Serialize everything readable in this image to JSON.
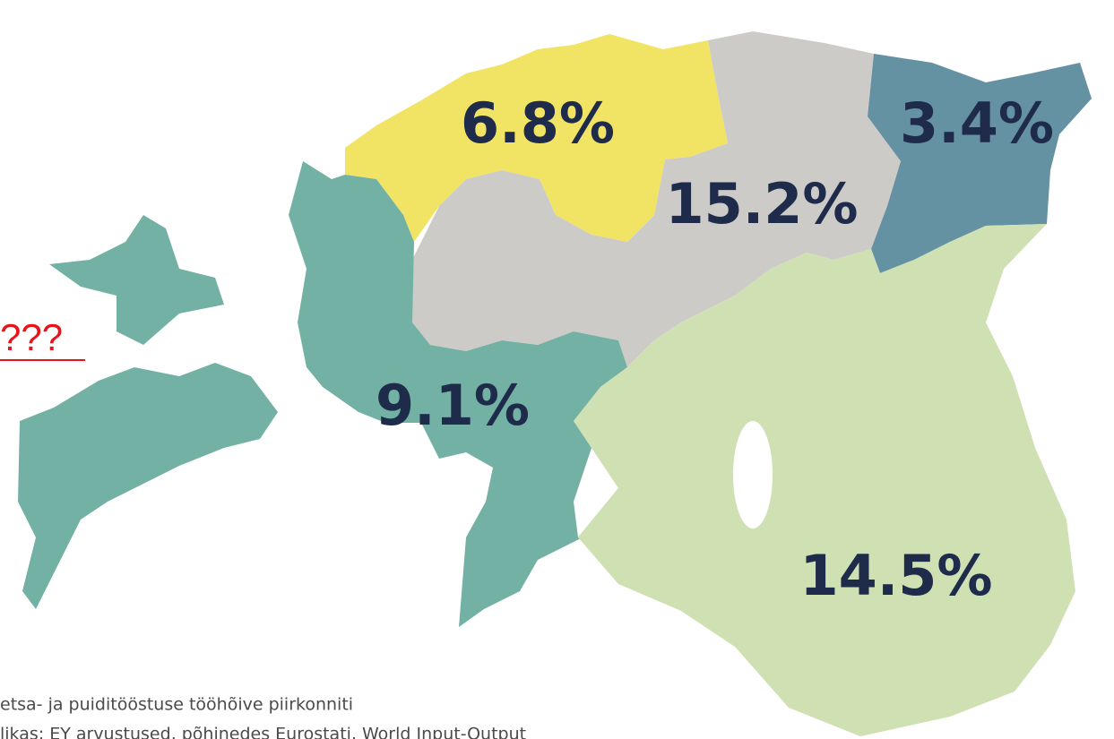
{
  "regions": [
    {
      "label": "6.8%",
      "value": 6.8,
      "color": "#f1e464"
    },
    {
      "label": "15.2%",
      "value": 15.2,
      "color": "#cdcbc8"
    },
    {
      "label": "3.4%",
      "value": 3.4,
      "color": "#6592a3"
    },
    {
      "label": "9.1%",
      "value": 9.1,
      "color": "#72b1a4"
    },
    {
      "label": "14.5%",
      "value": 14.5,
      "color": "#cfe0b3"
    }
  ],
  "link": "???",
  "caption": [
    "etsa- ja puiditööstuse tööhõive piirkonniti",
    "likas: EY arvustused, põhinedes Eurostati, World Input-Output"
  ]
}
